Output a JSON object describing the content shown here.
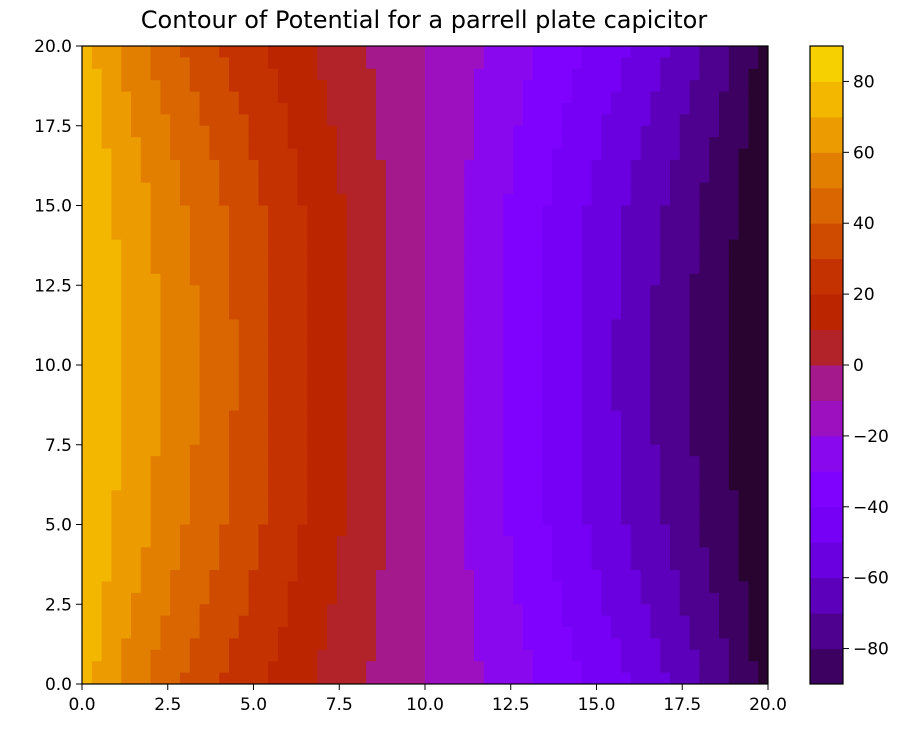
{
  "chart_data": {
    "type": "contourf",
    "title": "Contour of Potential for a parrell plate capicitor",
    "xlabel": "",
    "ylabel": "",
    "xlim": [
      0,
      20
    ],
    "ylim": [
      0,
      20
    ],
    "x_ticks": [
      "0.0",
      "2.5",
      "5.0",
      "7.5",
      "10.0",
      "12.5",
      "15.0",
      "17.5",
      "20.0"
    ],
    "y_ticks": [
      "0.0",
      "2.5",
      "5.0",
      "7.5",
      "10.0",
      "12.5",
      "15.0",
      "17.5",
      "20.0"
    ],
    "field": "potential",
    "plates": [
      {
        "x": 0,
        "potential": 90
      },
      {
        "x": 20,
        "potential": -90
      }
    ],
    "grid": false,
    "colorbar": {
      "colormap": "gnuplot",
      "range": [
        -90,
        90
      ],
      "levels": [
        -90,
        -80,
        -70,
        -60,
        -50,
        -40,
        -30,
        -20,
        -10,
        0,
        10,
        20,
        30,
        40,
        50,
        60,
        70,
        80,
        90
      ],
      "tick_labels": [
        "80",
        "60",
        "40",
        "20",
        "0",
        "−20",
        "−40",
        "−60",
        "−80"
      ],
      "tick_values": [
        80,
        60,
        40,
        20,
        0,
        -20,
        -40,
        -60,
        -80
      ],
      "colors": [
        "#2a0431",
        "#3d0162",
        "#4e018e",
        "#5d00bc",
        "#6a00e0",
        "#7500f5",
        "#7f02ff",
        "#8a08ee",
        "#9c10c0",
        "#a4198c",
        "#b22229",
        "#bb2500",
        "#c33200",
        "#ce4b00",
        "#d96600",
        "#e27f00",
        "#ec9c00",
        "#f3b700",
        "#f7d000",
        "#fbea00"
      ]
    }
  }
}
